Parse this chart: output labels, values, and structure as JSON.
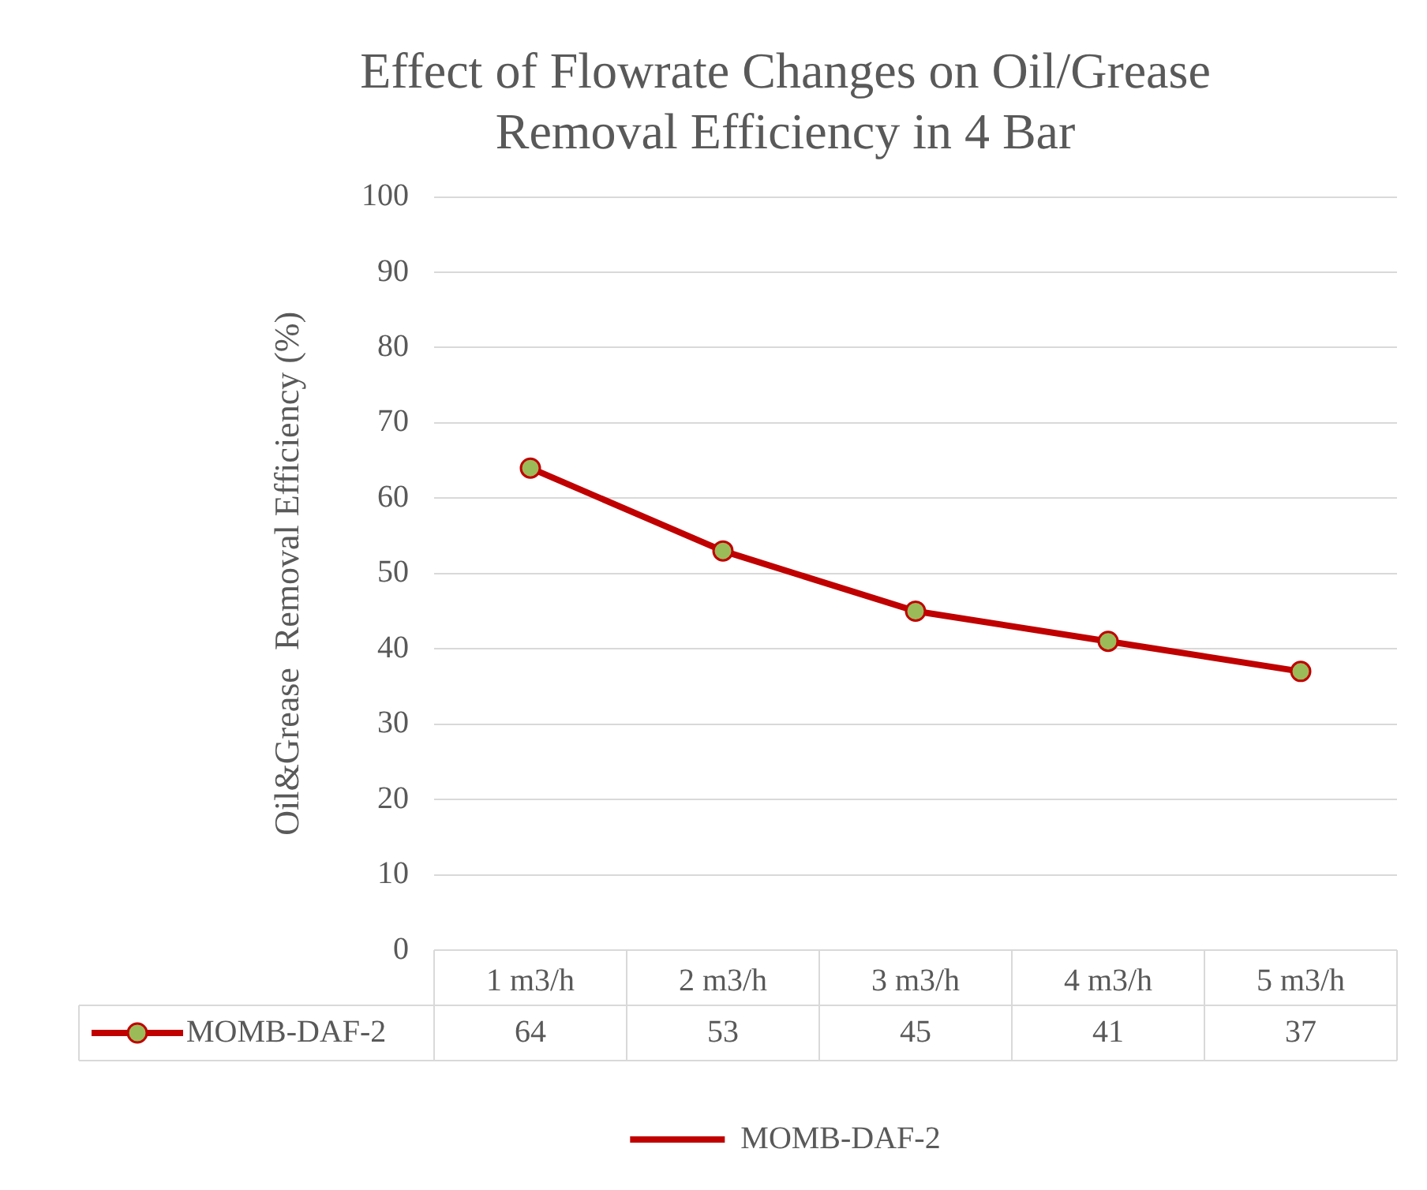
{
  "chart_data": {
    "type": "line",
    "title": "Effect of Flowrate Changes on Oil/Grease Removal Efficiency in 4 Bar",
    "ylabel": "Oil&Grease  Removal Efficiency (%)",
    "categories": [
      "1 m3/h",
      "2 m3/h",
      "3 m3/h",
      "4 m3/h",
      "5 m3/h"
    ],
    "series": [
      {
        "name": "MOMB-DAF-2",
        "color": "#c00000",
        "values": [
          64,
          53,
          45,
          41,
          37
        ]
      }
    ],
    "ylim": [
      0,
      100
    ],
    "yticks": [
      0,
      10,
      20,
      30,
      40,
      50,
      60,
      70,
      80,
      90,
      100
    ],
    "grid": "y",
    "legend": "bottom",
    "marker": "circle",
    "data_labels": true
  }
}
